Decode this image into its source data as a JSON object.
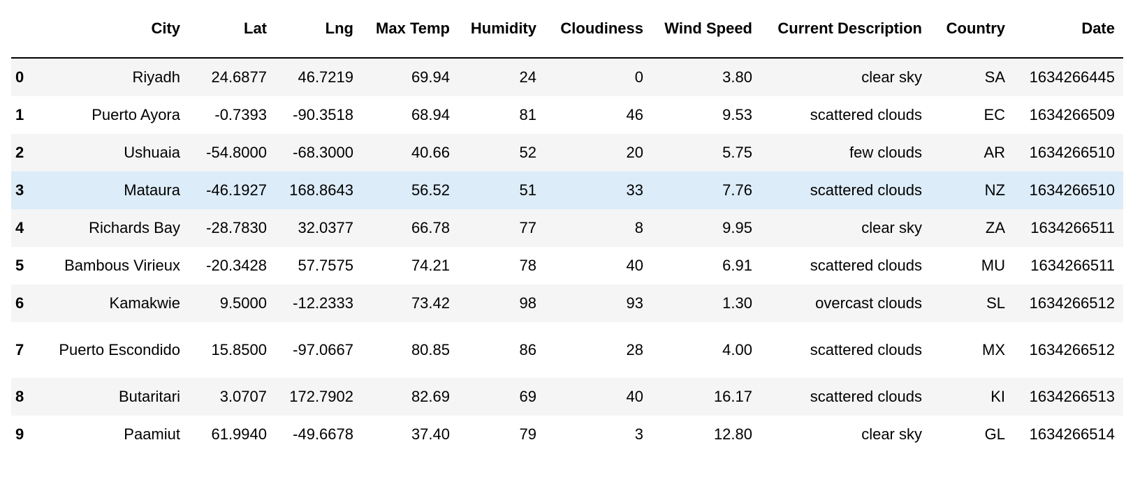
{
  "dataframe": {
    "columns": {
      "index": "",
      "city": "City",
      "lat": "Lat",
      "lng": "Lng",
      "max_temp": "Max Temp",
      "humidity": "Humidity",
      "cloudiness": "Cloudiness",
      "wind_speed": "Wind Speed",
      "current_description": "Current Description",
      "country": "Country",
      "date": "Date"
    },
    "highlight_color": "#dcecf8",
    "stripe_color": "#f5f5f5",
    "rows": [
      {
        "index": "0",
        "city": "Riyadh",
        "lat": "24.6877",
        "lng": "46.7219",
        "max_temp": "69.94",
        "humidity": "24",
        "cloudiness": "0",
        "wind_speed": "3.80",
        "current_description": "clear sky",
        "country": "SA",
        "date": "1634266445"
      },
      {
        "index": "1",
        "city": "Puerto Ayora",
        "lat": "-0.7393",
        "lng": "-90.3518",
        "max_temp": "68.94",
        "humidity": "81",
        "cloudiness": "46",
        "wind_speed": "9.53",
        "current_description": "scattered clouds",
        "country": "EC",
        "date": "1634266509"
      },
      {
        "index": "2",
        "city": "Ushuaia",
        "lat": "-54.8000",
        "lng": "-68.3000",
        "max_temp": "40.66",
        "humidity": "52",
        "cloudiness": "20",
        "wind_speed": "5.75",
        "current_description": "few clouds",
        "country": "AR",
        "date": "1634266510"
      },
      {
        "index": "3",
        "city": "Mataura",
        "lat": "-46.1927",
        "lng": "168.8643",
        "max_temp": "56.52",
        "humidity": "51",
        "cloudiness": "33",
        "wind_speed": "7.76",
        "current_description": "scattered clouds",
        "country": "NZ",
        "date": "1634266510"
      },
      {
        "index": "4",
        "city": "Richards Bay",
        "lat": "-28.7830",
        "lng": "32.0377",
        "max_temp": "66.78",
        "humidity": "77",
        "cloudiness": "8",
        "wind_speed": "9.95",
        "current_description": "clear sky",
        "country": "ZA",
        "date": "1634266511"
      },
      {
        "index": "5",
        "city": "Bambous Virieux",
        "lat": "-20.3428",
        "lng": "57.7575",
        "max_temp": "74.21",
        "humidity": "78",
        "cloudiness": "40",
        "wind_speed": "6.91",
        "current_description": "scattered clouds",
        "country": "MU",
        "date": "1634266511"
      },
      {
        "index": "6",
        "city": "Kamakwie",
        "lat": "9.5000",
        "lng": "-12.2333",
        "max_temp": "73.42",
        "humidity": "98",
        "cloudiness": "93",
        "wind_speed": "1.30",
        "current_description": "overcast clouds",
        "country": "SL",
        "date": "1634266512"
      },
      {
        "index": "7",
        "city": "Puerto Escondido",
        "lat": "15.8500",
        "lng": "-97.0667",
        "max_temp": "80.85",
        "humidity": "86",
        "cloudiness": "28",
        "wind_speed": "4.00",
        "current_description": "scattered clouds",
        "country": "MX",
        "date": "1634266512"
      },
      {
        "index": "8",
        "city": "Butaritari",
        "lat": "3.0707",
        "lng": "172.7902",
        "max_temp": "82.69",
        "humidity": "69",
        "cloudiness": "40",
        "wind_speed": "16.17",
        "current_description": "scattered clouds",
        "country": "KI",
        "date": "1634266513"
      },
      {
        "index": "9",
        "city": "Paamiut",
        "lat": "61.9940",
        "lng": "-49.6678",
        "max_temp": "37.40",
        "humidity": "79",
        "cloudiness": "3",
        "wind_speed": "12.80",
        "current_description": "clear sky",
        "country": "GL",
        "date": "1634266514"
      }
    ]
  }
}
